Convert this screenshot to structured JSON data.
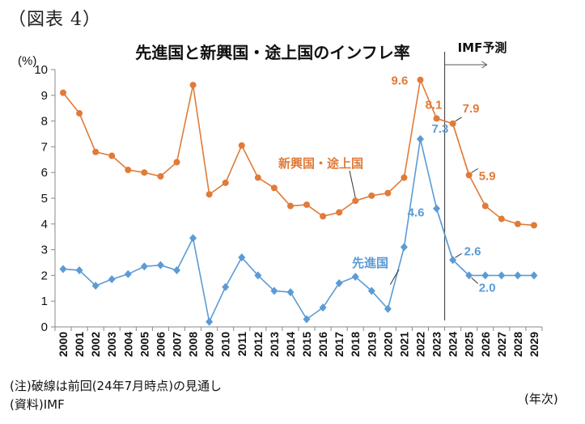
{
  "figure_label": "（図表 4）",
  "notes": {
    "note1": "(注)破線は前回(24年7月時点)の見通し",
    "source": "(資料)IMF",
    "year_unit": "(年次)"
  },
  "colors": {
    "emerging": "#E07B39",
    "advanced": "#5B9BD5"
  },
  "chart_data": {
    "type": "line",
    "title": "先進国と新興国・途上国のインフレ率",
    "ylabel": "(%)",
    "xlabel": "(年次)",
    "ylim": [
      0,
      10
    ],
    "yticks": [
      0,
      1,
      2,
      3,
      4,
      5,
      6,
      7,
      8,
      9,
      10
    ],
    "grid": false,
    "categories": [
      "2000",
      "2001",
      "2002",
      "2003",
      "2004",
      "2005",
      "2006",
      "2007",
      "2008",
      "2009",
      "2010",
      "2011",
      "2012",
      "2013",
      "2014",
      "2015",
      "2016",
      "2017",
      "2018",
      "2019",
      "2020",
      "2021",
      "2022",
      "2023",
      "2024",
      "2025",
      "2026",
      "2027",
      "2028",
      "2029"
    ],
    "series": [
      {
        "name": "新興国・途上国",
        "values": [
          9.1,
          8.3,
          6.8,
          6.65,
          6.1,
          6.0,
          5.85,
          6.4,
          9.4,
          5.15,
          5.6,
          7.05,
          5.8,
          5.4,
          4.7,
          4.75,
          4.3,
          4.45,
          4.9,
          5.1,
          5.2,
          5.8,
          9.6,
          8.1,
          7.9,
          5.9,
          4.7,
          4.2,
          4.0,
          3.95
        ]
      },
      {
        "name": "先進国",
        "values": [
          2.25,
          2.2,
          1.6,
          1.85,
          2.05,
          2.35,
          2.4,
          2.2,
          3.45,
          0.2,
          1.55,
          2.7,
          2.0,
          1.4,
          1.35,
          0.3,
          0.75,
          1.7,
          1.95,
          1.4,
          0.7,
          3.1,
          7.3,
          4.6,
          2.6,
          2.0,
          2.0,
          2.0,
          2.0,
          2.0
        ]
      }
    ],
    "previous_forecast": [
      {
        "series": "新興国・途上国",
        "x": [
          "2023",
          "2024",
          "2025"
        ],
        "values": [
          8.1,
          7.9,
          5.9
        ]
      },
      {
        "series": "先進国",
        "x": [
          "2023",
          "2024",
          "2025"
        ],
        "values": [
          4.6,
          2.6,
          2.0
        ]
      }
    ],
    "forecast_marker": {
      "label": "IMF予測",
      "after": "2023"
    },
    "annotations": [
      {
        "series": 0,
        "x": "2022",
        "text": "9.6"
      },
      {
        "series": 0,
        "x": "2023",
        "text": "8.1"
      },
      {
        "series": 0,
        "x": "2024",
        "text": "7.9"
      },
      {
        "series": 0,
        "x": "2025",
        "text": "5.9"
      },
      {
        "series": 1,
        "x": "2022",
        "text": "7.3"
      },
      {
        "series": 1,
        "x": "2023",
        "text": "4.6"
      },
      {
        "series": 1,
        "x": "2024",
        "text": "2.6"
      },
      {
        "series": 1,
        "x": "2025",
        "text": "2.0"
      }
    ]
  }
}
